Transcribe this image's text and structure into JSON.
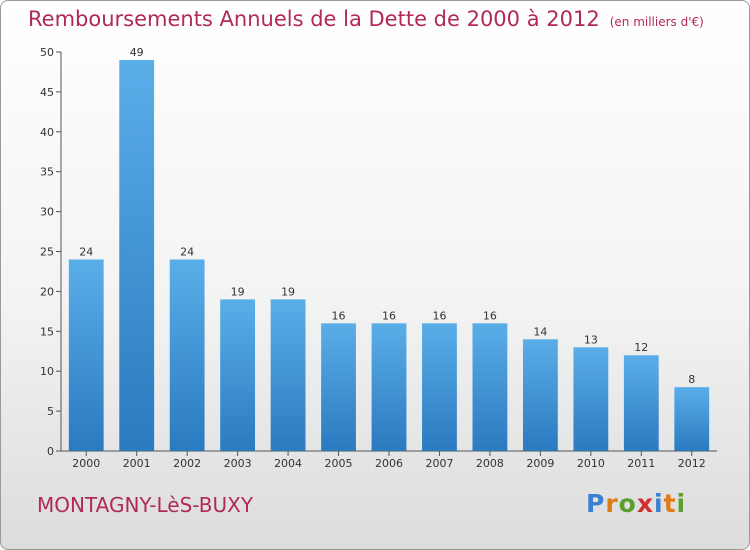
{
  "title": "Remboursements Annuels de la Dette de 2000 à 2012",
  "subtitle": "(en milliers d'€)",
  "town": "MONTAGNY-LèS-BUXY",
  "brand": {
    "letters": [
      "P",
      "r",
      "o",
      "x",
      "i",
      "t",
      "i"
    ],
    "colors": [
      "#3a7fd0",
      "#e07b1a",
      "#5aa02c",
      "#d32f2f",
      "#3a7fd0",
      "#e07b1a",
      "#5aa02c"
    ]
  },
  "colors": {
    "bar_light": "#5aaee8",
    "bar_dark": "#2a7ac0",
    "title": "#b0295a"
  },
  "chart_data": {
    "type": "bar",
    "title": "Remboursements Annuels de la Dette de 2000 à 2012",
    "subtitle": "(en milliers d'€)",
    "xlabel": "",
    "ylabel": "",
    "categories": [
      "2000",
      "2001",
      "2002",
      "2003",
      "2004",
      "2005",
      "2006",
      "2007",
      "2008",
      "2009",
      "2010",
      "2011",
      "2012"
    ],
    "values": [
      24,
      49,
      24,
      19,
      19,
      16,
      16,
      16,
      16,
      14,
      13,
      12,
      8
    ],
    "ylim": [
      0,
      50
    ],
    "yticks": [
      0,
      5,
      10,
      15,
      20,
      25,
      30,
      35,
      40,
      45,
      50
    ],
    "grid": false,
    "legend": "none"
  }
}
